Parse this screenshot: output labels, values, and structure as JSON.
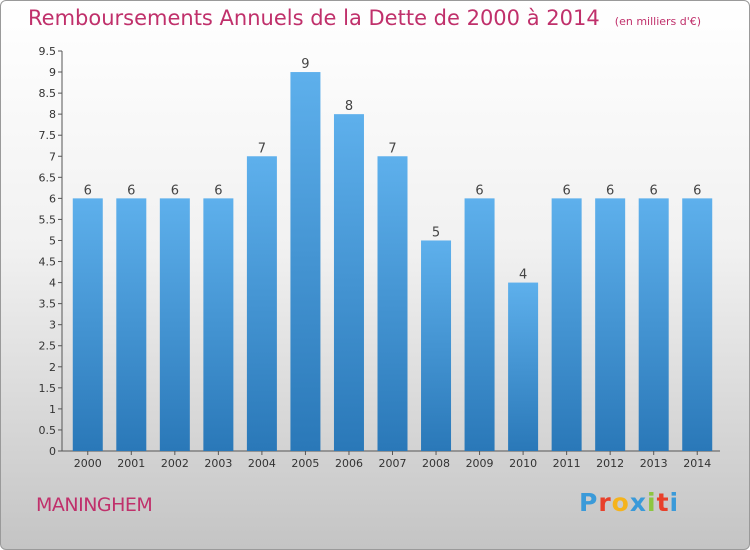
{
  "title": {
    "main": "Remboursements Annuels de la Dette de 2000 à 2014",
    "unit": "(en milliers d'€)"
  },
  "commune": "MANINGHEM",
  "logo": {
    "letters": [
      "P",
      "r",
      "o",
      "x",
      "i",
      "t",
      "i"
    ],
    "colors": [
      "#3a9ad9",
      "#e8402a",
      "#f5b31c",
      "#3a9ad9",
      "#8dc63f",
      "#e8402a",
      "#3a9ad9"
    ]
  },
  "colors": {
    "bar_top": "#5eb0ec",
    "bar_bottom": "#2a78b8",
    "title": "#c0306b"
  },
  "chart_data": {
    "type": "bar",
    "categories": [
      "2000",
      "2001",
      "2002",
      "2003",
      "2004",
      "2005",
      "2006",
      "2007",
      "2008",
      "2009",
      "2010",
      "2011",
      "2012",
      "2013",
      "2014"
    ],
    "values": [
      6,
      6,
      6,
      6,
      7,
      9,
      8,
      7,
      5,
      6,
      4,
      6,
      6,
      6,
      6
    ],
    "data_labels": [
      "6",
      "6",
      "6",
      "6",
      "7",
      "9",
      "8",
      "7",
      "5",
      "6",
      "4",
      "6",
      "6",
      "6",
      "6"
    ],
    "ylim": [
      0,
      9.5
    ],
    "y_ticks": [
      0,
      0.5,
      1,
      1.5,
      2,
      2.5,
      3,
      3.5,
      4,
      4.5,
      5,
      5.5,
      6,
      6.5,
      7,
      7.5,
      8,
      8.5,
      9,
      9.5
    ],
    "y_tick_labels": [
      "0",
      "0.5",
      "1",
      "1.5",
      "2",
      "2.5",
      "3",
      "3.5",
      "4",
      "4.5",
      "5",
      "5.5",
      "6",
      "6.5",
      "7",
      "7.5",
      "8",
      "8.5",
      "9",
      "9.5"
    ],
    "grid": false
  }
}
